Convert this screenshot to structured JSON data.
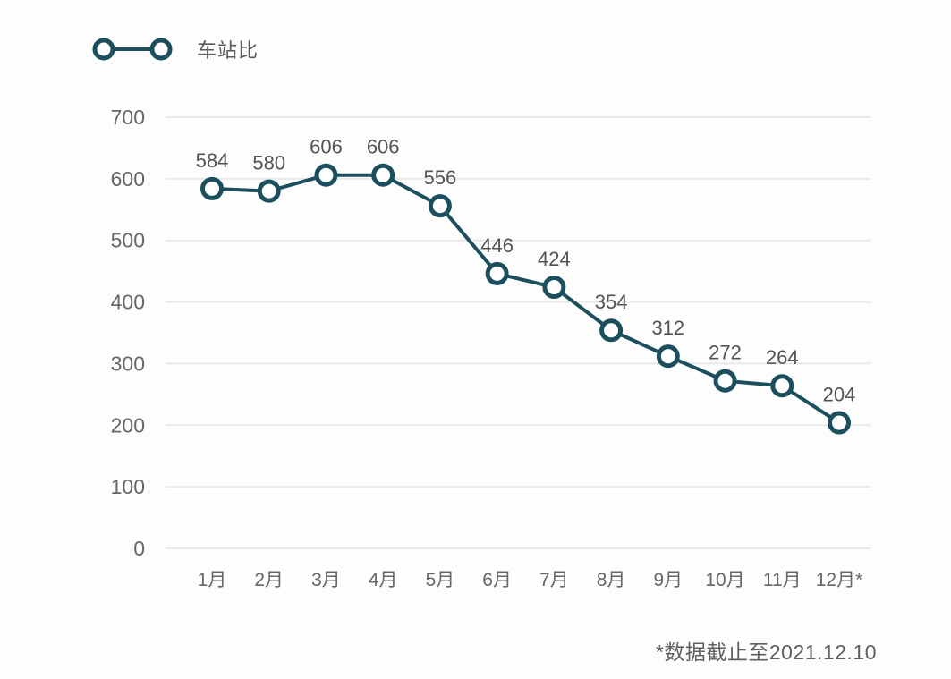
{
  "legend": {
    "label": "车站比",
    "marker_icon": "line-with-two-open-circles"
  },
  "footnote": "*数据截止至2021.12.10",
  "colors": {
    "line": "#1b4f5e",
    "marker_fill": "#ffffff",
    "grid": "#e9e9e9",
    "data_label_text": "#545454",
    "axis_text": "#666666",
    "background": "#fdfdfd"
  },
  "chart_data": {
    "type": "line",
    "title": "",
    "categories": [
      "1月",
      "2月",
      "3月",
      "4月",
      "5月",
      "6月",
      "7月",
      "8月",
      "9月",
      "10月",
      "11月",
      "12月*"
    ],
    "series": [
      {
        "name": "车站比",
        "values": [
          584,
          580,
          606,
          606,
          556,
          446,
          424,
          354,
          312,
          272,
          264,
          204
        ]
      }
    ],
    "xlabel": "",
    "ylabel": "",
    "ylim": [
      0,
      700
    ],
    "ytick_step": 100,
    "grid": true,
    "legend_position": "top-left",
    "marker": "open-circle",
    "data_labels": true
  }
}
